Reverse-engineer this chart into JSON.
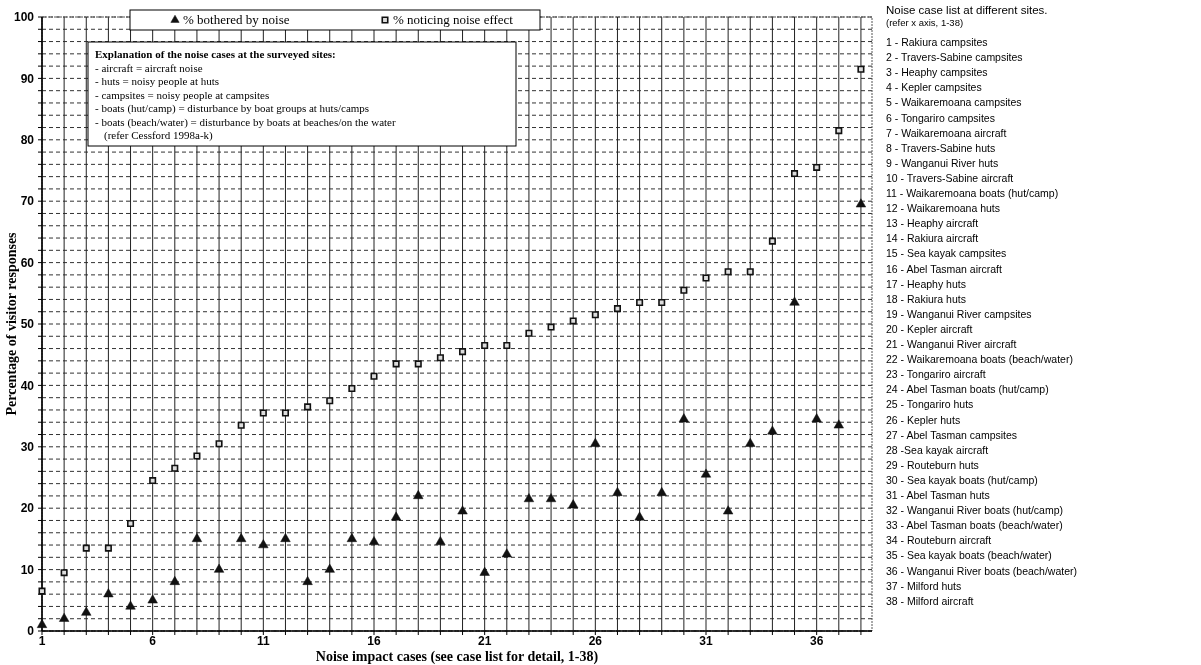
{
  "chart_data": {
    "type": "scatter",
    "xlabel": "Noise impact cases (see case list for detail, 1-38)",
    "ylabel": "Percentage of visitor responses",
    "x": [
      1,
      2,
      3,
      4,
      5,
      6,
      7,
      8,
      9,
      10,
      11,
      12,
      13,
      14,
      15,
      16,
      17,
      18,
      19,
      20,
      21,
      22,
      23,
      24,
      25,
      26,
      27,
      28,
      29,
      30,
      31,
      32,
      33,
      34,
      35,
      36,
      37,
      38
    ],
    "xlim": [
      1,
      38.5
    ],
    "xticks": [
      1,
      {
        "value": 2,
        "label": null
      },
      {
        "value": 3,
        "label": null
      },
      {
        "value": 4,
        "label": null
      },
      {
        "value": 5,
        "label": null
      },
      6,
      {
        "value": 7,
        "label": null
      },
      {
        "value": 8,
        "label": null
      },
      {
        "value": 9,
        "label": null
      },
      {
        "value": 10,
        "label": null
      },
      11,
      {
        "value": 12,
        "label": null
      },
      {
        "value": 13,
        "label": null
      },
      {
        "value": 14,
        "label": null
      },
      {
        "value": 15,
        "label": null
      },
      16,
      {
        "value": 17,
        "label": null
      },
      {
        "value": 18,
        "label": null
      },
      {
        "value": 19,
        "label": null
      },
      {
        "value": 20,
        "label": null
      },
      21,
      {
        "value": 22,
        "label": null
      },
      {
        "value": 23,
        "label": null
      },
      {
        "value": 24,
        "label": null
      },
      {
        "value": 25,
        "label": null
      },
      26,
      {
        "value": 27,
        "label": null
      },
      {
        "value": 28,
        "label": null
      },
      {
        "value": 29,
        "label": null
      },
      {
        "value": 30,
        "label": null
      },
      31,
      {
        "value": 32,
        "label": null
      },
      {
        "value": 33,
        "label": null
      },
      {
        "value": 34,
        "label": null
      },
      {
        "value": 35,
        "label": null
      },
      36,
      {
        "value": 37,
        "label": null
      },
      {
        "value": 38,
        "label": null
      }
    ],
    "ylim": [
      0,
      100
    ],
    "yticks": [
      0,
      {
        "value": 2,
        "label": null
      },
      {
        "value": 4,
        "label": null
      },
      {
        "value": 6,
        "label": null
      },
      {
        "value": 8,
        "label": null
      },
      10,
      {
        "value": 12,
        "label": null
      },
      {
        "value": 14,
        "label": null
      },
      {
        "value": 16,
        "label": null
      },
      {
        "value": 18,
        "label": null
      },
      20,
      {
        "value": 22,
        "label": null
      },
      {
        "value": 24,
        "label": null
      },
      {
        "value": 26,
        "label": null
      },
      {
        "value": 28,
        "label": null
      },
      30,
      {
        "value": 32,
        "label": null
      },
      {
        "value": 34,
        "label": null
      },
      {
        "value": 36,
        "label": null
      },
      {
        "value": 38,
        "label": null
      },
      40,
      {
        "value": 42,
        "label": null
      },
      {
        "value": 44,
        "label": null
      },
      {
        "value": 46,
        "label": null
      },
      {
        "value": 48,
        "label": null
      },
      50,
      {
        "value": 52,
        "label": null
      },
      {
        "value": 54,
        "label": null
      },
      {
        "value": 56,
        "label": null
      },
      {
        "value": 58,
        "label": null
      },
      60,
      {
        "value": 62,
        "label": null
      },
      {
        "value": 64,
        "label": null
      },
      {
        "value": 66,
        "label": null
      },
      {
        "value": 68,
        "label": null
      },
      70,
      {
        "value": 72,
        "label": null
      },
      {
        "value": 74,
        "label": null
      },
      {
        "value": 76,
        "label": null
      },
      {
        "value": 78,
        "label": null
      },
      80,
      {
        "value": 82,
        "label": null
      },
      {
        "value": 84,
        "label": null
      },
      {
        "value": 86,
        "label": null
      },
      {
        "value": 88,
        "label": null
      },
      90,
      {
        "value": 92,
        "label": null
      },
      {
        "value": 94,
        "label": null
      },
      {
        "value": 96,
        "label": null
      },
      {
        "value": 98,
        "label": null
      },
      100
    ],
    "grid": true,
    "legend": "top left",
    "series": [
      {
        "name": "% bothered by noise",
        "color": "#111111",
        "marker": "triangle",
        "values": [
          1,
          2,
          3,
          6,
          4,
          5,
          8,
          15,
          10,
          15,
          14,
          15,
          8,
          10,
          15,
          14.5,
          18.5,
          22,
          14.5,
          19.5,
          9.5,
          12.5,
          21.5,
          21.5,
          20.5,
          30.5,
          22.5,
          18.5,
          22.5,
          34.5,
          25.5,
          19.5,
          30.5,
          32.5,
          53.5,
          34.5,
          33.5,
          69.5
        ]
      },
      {
        "name": "% noticing noise effect",
        "color": "#111111",
        "marker": "square",
        "values": [
          6.5,
          9.5,
          13.5,
          13.5,
          17.5,
          24.5,
          26.5,
          28.5,
          30.5,
          33.5,
          35.5,
          35.5,
          36.5,
          37.5,
          39.5,
          41.5,
          43.5,
          43.5,
          44.5,
          45.5,
          46.5,
          46.5,
          48.5,
          49.5,
          50.5,
          51.5,
          52.5,
          53.5,
          53.5,
          55.5,
          57.5,
          58.5,
          58.5,
          63.5,
          74.5,
          75.5,
          81.5,
          91.5
        ]
      }
    ],
    "annotations": [
      "Explanation of the noise cases at the surveyed sites:",
      "- aircraft = aircraft noise",
      "- huts = noisy people at huts",
      "- campsites = noisy people at campsites",
      "- boats (hut/camp) = disturbance by boat groups at huts/camps",
      "- boats (beach/water) = disturbance by boats at beaches/on the water",
      "(refer Cessford 1998a-k)",
      "Noise case list at different sites.",
      "(refer x axis, 1-38)",
      "1 - Rakiura campsites",
      "2 - Travers-Sabine campsites",
      "3 - Heaphy campsites",
      "4 - Kepler campsites",
      "5 - Waikaremoana campsites",
      "6 - Tongariro campsites",
      "7 - Waikaremoana aircraft",
      "8 - Travers-Sabine huts",
      "9 - Wanganui River huts",
      "10 - Travers-Sabine aircraft",
      "11 - Waikaremoana boats (hut/camp)",
      "12 - Waikaremoana huts",
      "13 - Heaphy aircraft",
      "14 - Rakiura aircraft",
      "15 - Sea kayak campsites",
      "16 - Abel Tasman aircraft",
      "17 - Heaphy huts",
      "18 - Rakiura huts",
      "19 - Wanganui River campsites",
      "20 - Kepler aircraft",
      "21 - Wanganui River aircraft",
      "22 - Waikaremoana boats (beach/water)",
      "23 - Tongariro aircraft",
      "24 - Abel Tasman boats (hut/camp)",
      "25 - Tongariro huts",
      "26 - Kepler huts",
      "27 - Abel Tasman campsites",
      "28 -Sea kayak aircraft",
      "29 - Routeburn huts",
      "30 - Sea kayak boats (hut/camp)",
      "31 - Abel Tasman huts",
      "32 - Wanganui River boats (hut/camp)",
      "33 - Abel Tasman boats (beach/water)",
      "34 - Routeburn aircraft",
      "35 - Sea kayak boats (beach/water)",
      "36 - Wanganui River boats (beach/water)",
      "37 - Milford huts",
      "38 - Milford aircraft"
    ]
  }
}
